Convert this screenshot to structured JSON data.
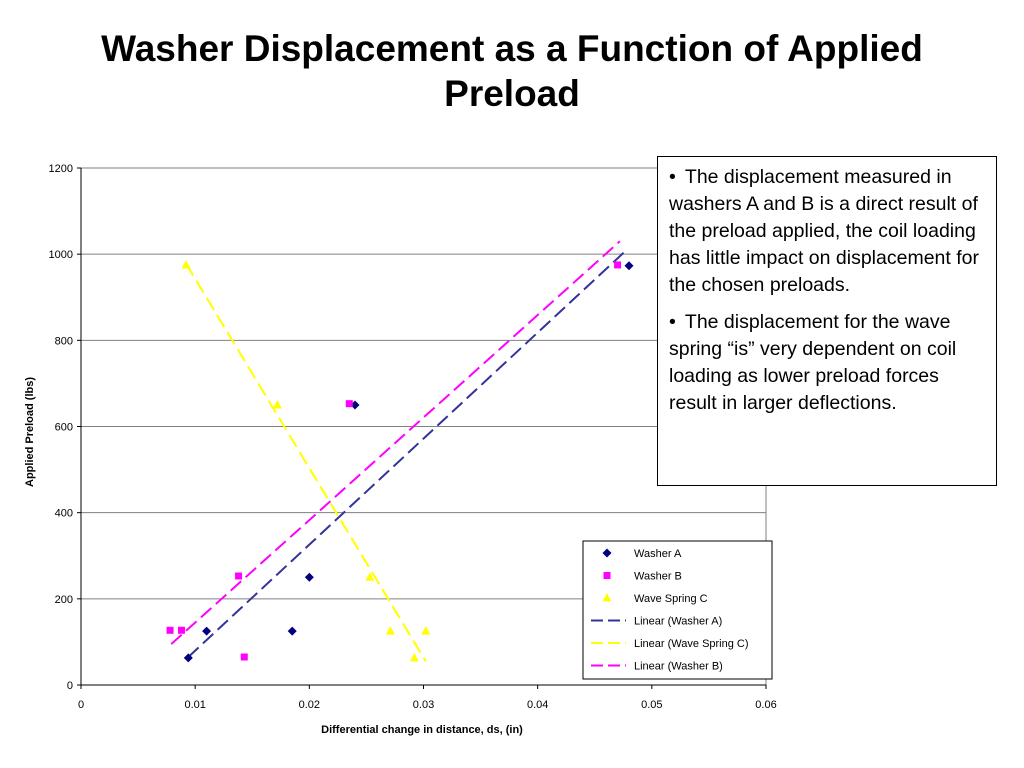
{
  "slide": {
    "title": "Washer Displacement as a Function of Applied Preload"
  },
  "notes": {
    "bullet": "•",
    "items": [
      "The displacement measured in washers A and B is a direct result of the preload applied, the coil loading has little impact on displacement for the chosen preloads.",
      "The displacement for the wave spring “is” very dependent on coil loading as lower preload forces result in larger deflections."
    ]
  },
  "chart_data": {
    "type": "scatter",
    "xlabel": "Differential change in distance, ds, (in)",
    "ylabel": "Applied Preload (lbs)",
    "xlim": [
      0,
      0.06
    ],
    "ylim": [
      0,
      1200
    ],
    "xticks": [
      "0",
      "0.01",
      "0.02",
      "0.03",
      "0.04",
      "0.05",
      "0.06"
    ],
    "yticks": [
      "0",
      "200",
      "400",
      "600",
      "800",
      "1000",
      "1200"
    ],
    "grid": "horizontal",
    "legend_position": "bottom-right",
    "series": [
      {
        "name": "Washer A",
        "color": "#000080",
        "marker": "diamond",
        "points": [
          [
            0.0094,
            63
          ],
          [
            0.011,
            125
          ],
          [
            0.0185,
            125
          ],
          [
            0.02,
            250
          ],
          [
            0.024,
            650
          ],
          [
            0.048,
            973
          ]
        ]
      },
      {
        "name": "Washer B",
        "color": "#ff00ff",
        "marker": "square",
        "points": [
          [
            0.0078,
            127
          ],
          [
            0.0088,
            127
          ],
          [
            0.0143,
            65
          ],
          [
            0.0138,
            253
          ],
          [
            0.0235,
            653
          ],
          [
            0.047,
            975
          ]
        ]
      },
      {
        "name": "Wave Spring C",
        "color": "#ffff00",
        "marker": "triangle",
        "points": [
          [
            0.0092,
            975
          ],
          [
            0.0172,
            650
          ],
          [
            0.0253,
            250
          ],
          [
            0.0271,
            125
          ],
          [
            0.0292,
            63
          ],
          [
            0.0302,
            125
          ]
        ]
      }
    ],
    "trendlines": [
      {
        "name": "Linear (Washer A)",
        "color": "#333399",
        "x": [
          0.0094,
          0.0478
        ],
        "y": [
          65,
          1010
        ]
      },
      {
        "name": "Linear (Wave Spring C)",
        "color": "#ffff00",
        "x": [
          0.0092,
          0.0302
        ],
        "y": [
          978,
          55
        ]
      },
      {
        "name": "Linear (Washer B)",
        "color": "#ff00ff",
        "x": [
          0.0079,
          0.0472
        ],
        "y": [
          95,
          1030
        ]
      }
    ]
  }
}
